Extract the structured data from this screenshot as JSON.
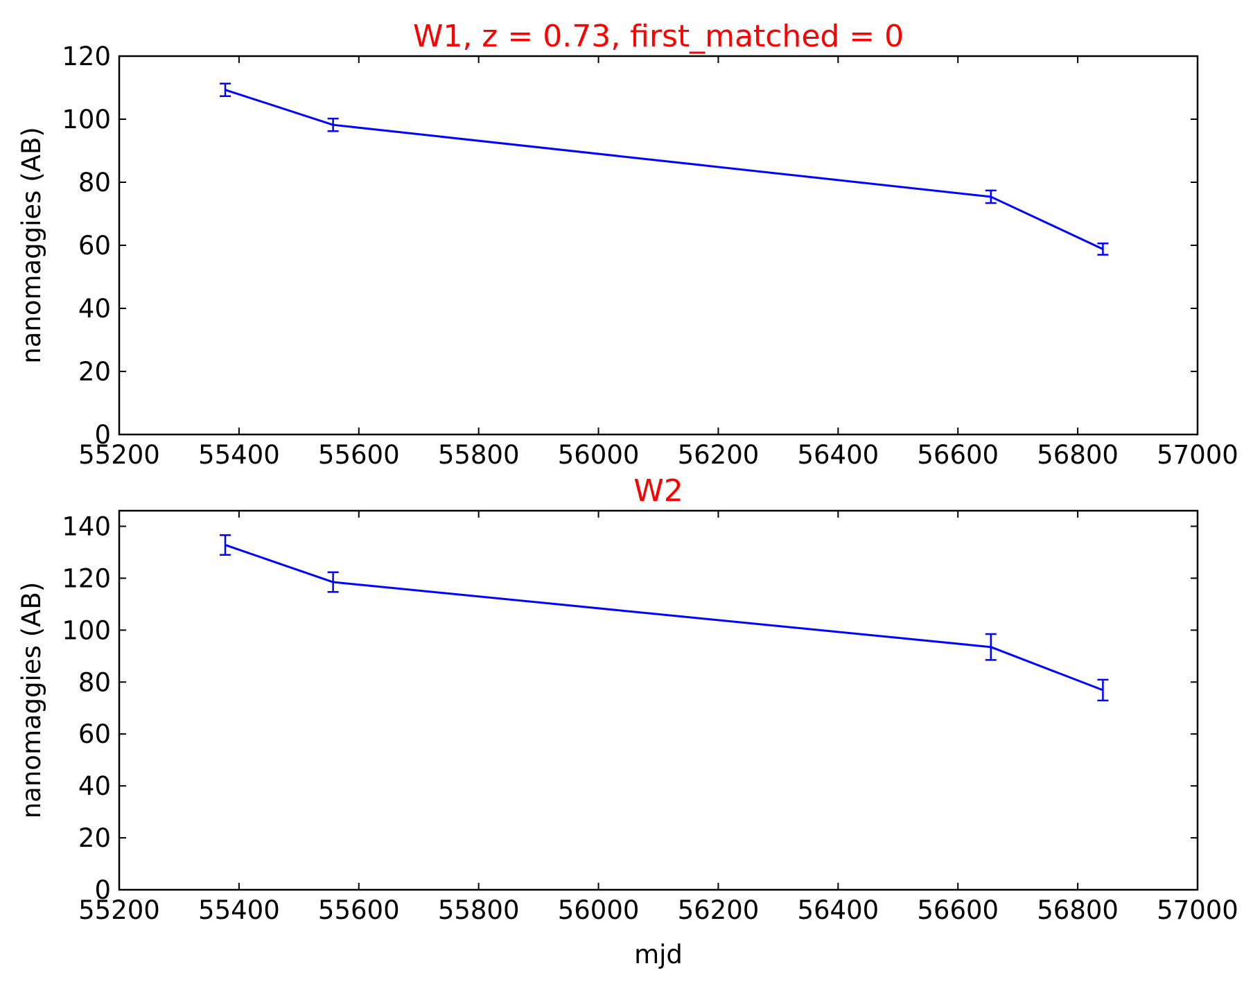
{
  "colors": {
    "title": "#ff0000",
    "series": "#0000ff",
    "axis": "#000000",
    "background": "#ffffff"
  },
  "chart_data": [
    {
      "type": "line",
      "title": "W1, z = 0.73, first_matched = 0",
      "xlabel": "",
      "ylabel": "nanomaggies (AB)",
      "xlim": [
        55200,
        57000
      ],
      "ylim": [
        0,
        120
      ],
      "xticks": [
        55200,
        55400,
        55600,
        55800,
        56000,
        56200,
        56400,
        56600,
        56800,
        57000
      ],
      "yticks": [
        0,
        20,
        40,
        60,
        80,
        100,
        120
      ],
      "grid": false,
      "legend": "none",
      "series": [
        {
          "x": [
            55377,
            55557,
            56655,
            56842
          ],
          "y": [
            109.3,
            98.2,
            75.4,
            58.8
          ],
          "yerr": [
            2.0,
            2.0,
            2.0,
            1.8
          ]
        }
      ]
    },
    {
      "type": "line",
      "title": "W2",
      "xlabel": "mjd",
      "ylabel": "nanomaggies (AB)",
      "xlim": [
        55200,
        57000
      ],
      "ylim": [
        0,
        146
      ],
      "xticks": [
        55200,
        55400,
        55600,
        55800,
        56000,
        56200,
        56400,
        56600,
        56800,
        57000
      ],
      "yticks": [
        0,
        20,
        40,
        60,
        80,
        100,
        120,
        140
      ],
      "grid": false,
      "legend": "none",
      "series": [
        {
          "x": [
            55377,
            55557,
            56655,
            56842
          ],
          "y": [
            132.8,
            118.5,
            93.5,
            76.9
          ],
          "yerr": [
            3.8,
            3.8,
            5.0,
            4.0
          ]
        }
      ]
    }
  ]
}
